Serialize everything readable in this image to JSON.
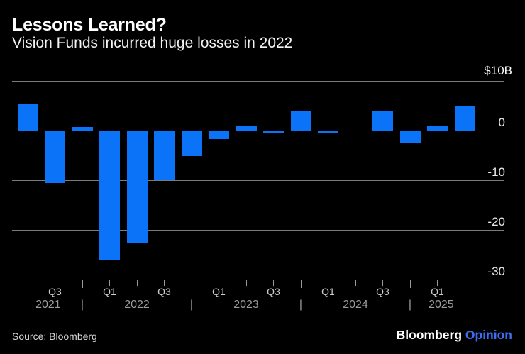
{
  "header": {
    "title": "Lessons Learned?",
    "subtitle": "Vision Funds incurred huge losses in 2022"
  },
  "source": {
    "label": "Source: Bloomberg"
  },
  "logo": {
    "brand": "Bloomberg",
    "product": "Opinion"
  },
  "colors": {
    "background": "#000000",
    "bar": "#0b73f7",
    "gridline": "#7b7b7b",
    "zero_line": "#d9d9d9",
    "axis_line": "#989898",
    "logo_product_blue": "#3b6ef3"
  },
  "chart_data": {
    "type": "bar",
    "title": "Lessons Learned?",
    "subtitle": "Vision Funds incurred huge losses in 2022",
    "unit_label": "$10B",
    "xlabel": "",
    "ylabel": "",
    "ylim": [
      -30,
      10
    ],
    "grid": true,
    "legend": "none",
    "bar_color": "#0b73f7",
    "x": [
      "Q2 2021",
      "Q3 2021",
      "Q4 2021",
      "Q1 2022",
      "Q2 2022",
      "Q3 2022",
      "Q4 2022",
      "Q1 2023",
      "Q2 2023",
      "Q3 2023",
      "Q4 2023",
      "Q1 2024",
      "Q2 2024",
      "Q3 2024",
      "Q4 2024",
      "Q1 2025",
      "Q2 2025"
    ],
    "values": [
      5.5,
      -10.5,
      0.8,
      -25.9,
      -22.6,
      -9.9,
      -5.1,
      -1.6,
      1.0,
      -0.4,
      4.1,
      -0.4,
      0,
      4.0,
      -2.5,
      1.1,
      5.1
    ],
    "y_ticks": [
      {
        "value": 10,
        "label": "$10B"
      },
      {
        "value": 0,
        "label": "0"
      },
      {
        "value": -10,
        "label": "-10"
      },
      {
        "value": -20,
        "label": "-20"
      },
      {
        "value": -30,
        "label": "-30"
      }
    ],
    "x_axis": {
      "quarter_labels": [
        {
          "index": 1,
          "label": "Q3"
        },
        {
          "index": 3,
          "label": "Q1"
        },
        {
          "index": 5,
          "label": "Q3"
        },
        {
          "index": 7,
          "label": "Q1"
        },
        {
          "index": 9,
          "label": "Q3"
        },
        {
          "index": 11,
          "label": "Q1"
        },
        {
          "index": 13,
          "label": "Q3"
        },
        {
          "index": 15,
          "label": "Q1"
        }
      ],
      "year_labels": [
        {
          "pos": 0.75,
          "label": "2021"
        },
        {
          "pos": 4,
          "label": "2022"
        },
        {
          "pos": 8,
          "label": "2023"
        },
        {
          "pos": 12,
          "label": "2024"
        },
        {
          "pos": 15.14,
          "label": "2025"
        }
      ],
      "year_separator_glyph": "|",
      "year_separator_indices": [
        2,
        6,
        10,
        14
      ]
    }
  }
}
